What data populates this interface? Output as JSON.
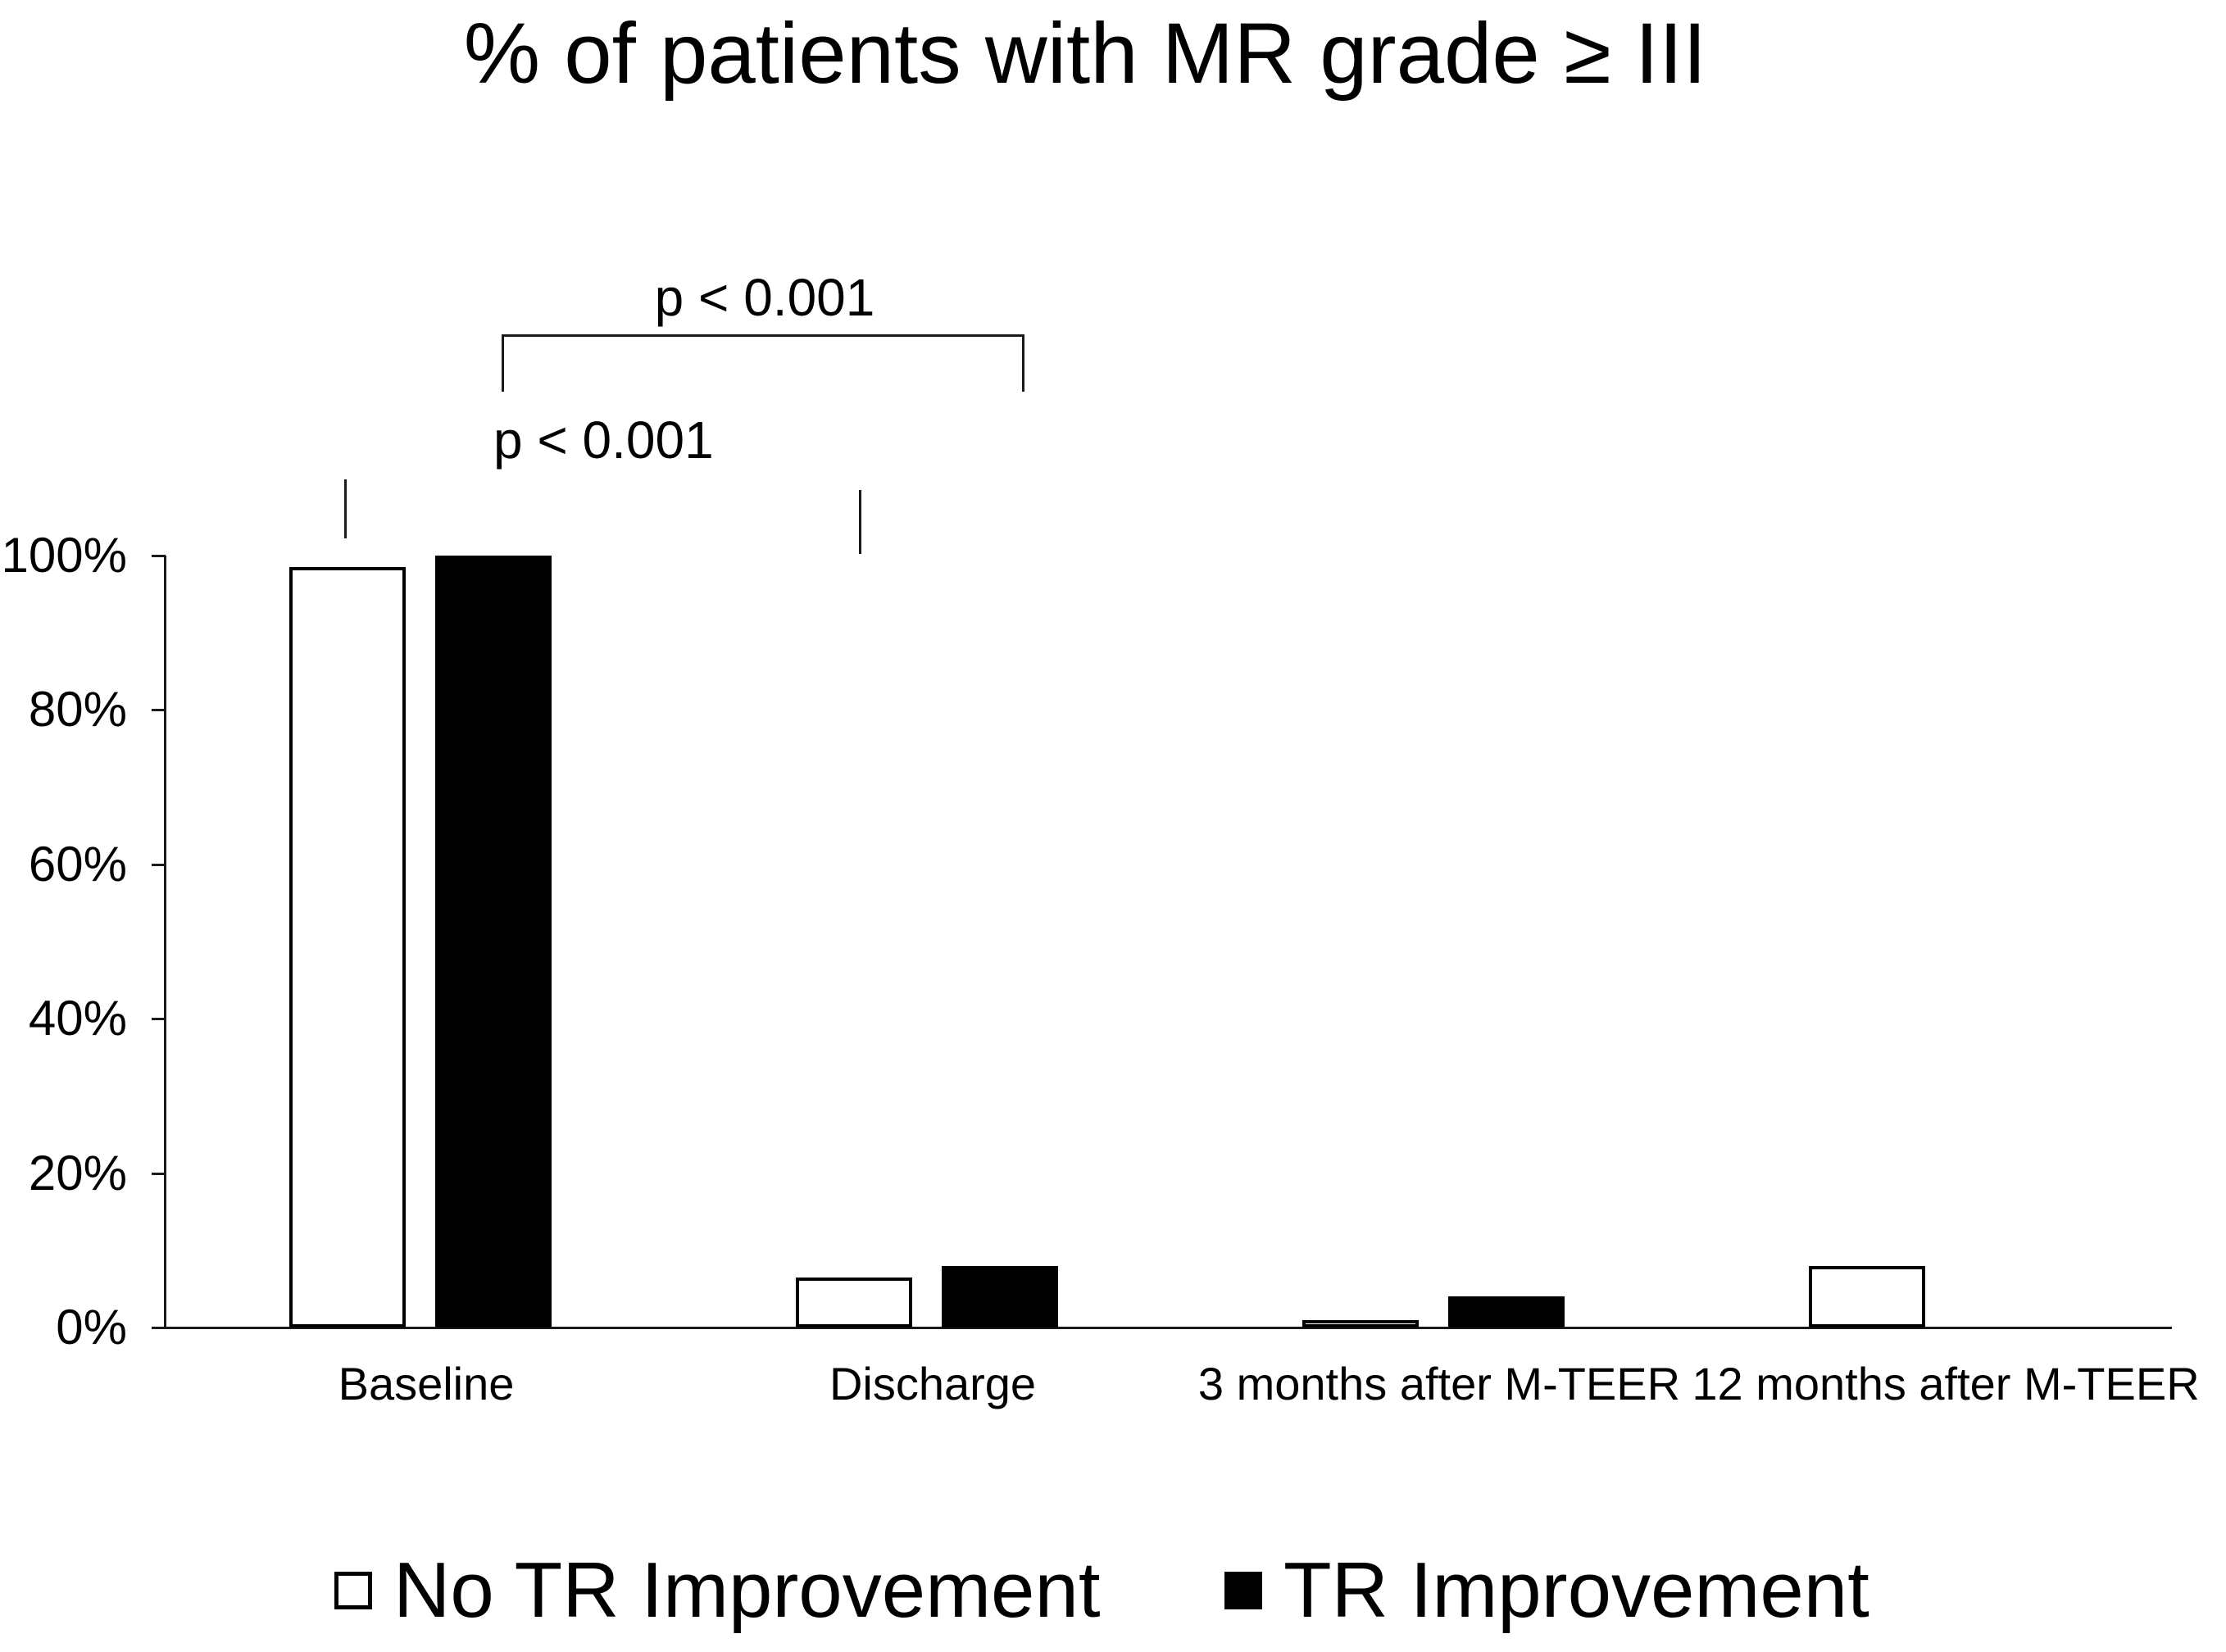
{
  "title": "% of patients with MR grade ≥ III",
  "annotations": {
    "top_bracket_label": "p < 0.001",
    "bottom_bracket_label": "p < 0.001"
  },
  "legend": {
    "items": [
      {
        "label": "No TR Improvement",
        "swatch_color": "#ffffff"
      },
      {
        "label": "TR Improvement",
        "swatch_color": "#000000"
      }
    ]
  },
  "colors": {
    "foreground": "#000000",
    "background": "#ffffff"
  },
  "chart_data": {
    "type": "bar",
    "title": "% of patients with MR grade ≥ III",
    "categories": [
      "Baseline",
      "Discharge",
      "3 months after M-TEER",
      "12 months after M-TEER"
    ],
    "series": [
      {
        "name": "No TR Improvement",
        "fill": "#ffffff",
        "outline": "#000000",
        "values_pct": [
          98.5,
          6.5,
          1,
          8
        ]
      },
      {
        "name": "TR Improvement",
        "fill": "#000000",
        "outline": "#000000",
        "values_pct": [
          100,
          8,
          4,
          null
        ]
      }
    ],
    "xlabel": "",
    "ylabel": "",
    "y_axis": {
      "ticks": [
        0,
        20,
        40,
        60,
        80,
        100
      ],
      "tick_labels": [
        "0%",
        "20%",
        "40%",
        "60%",
        "80%",
        "100%"
      ],
      "ylim": [
        0,
        100
      ]
    },
    "grid": false,
    "legend_position": "bottom",
    "annotations": [
      {
        "text": "p < 0.001"
      },
      {
        "text": "p < 0.001"
      }
    ]
  }
}
